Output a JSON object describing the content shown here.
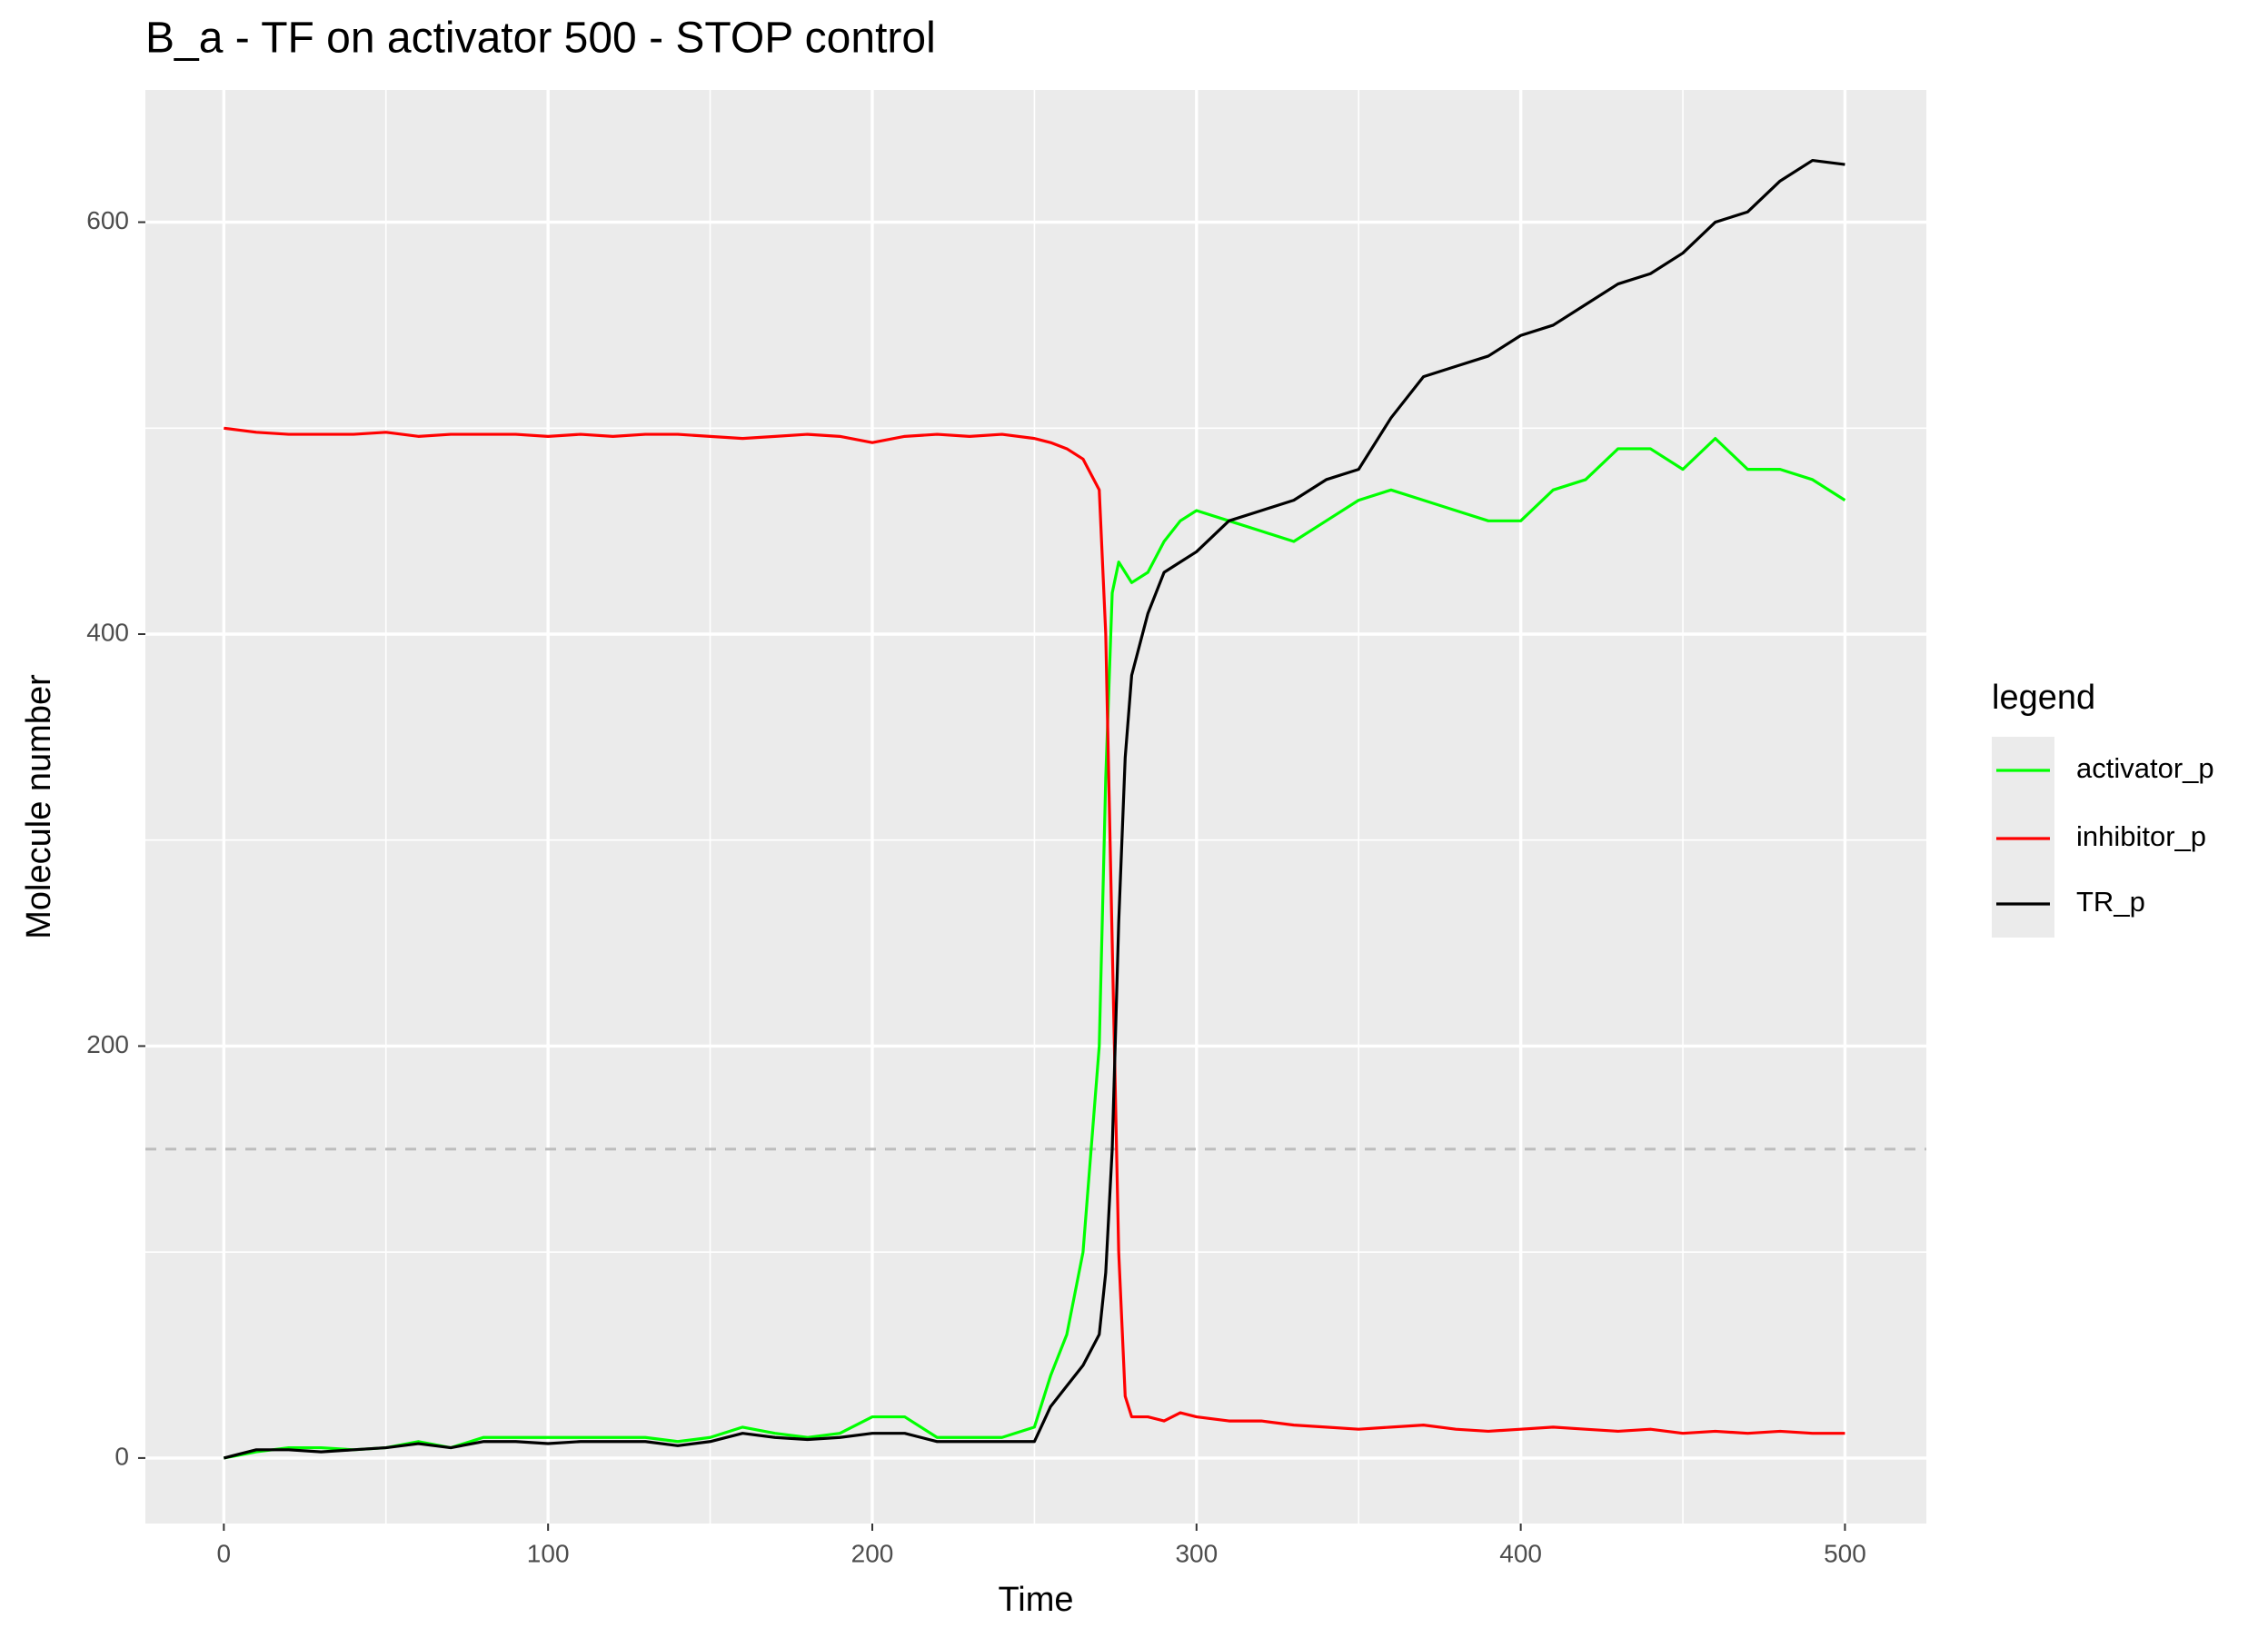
{
  "chart_data": {
    "type": "line",
    "title": "B_a - TF on activator 500 - STOP control",
    "x_label": "Time",
    "y_label": "Molecule number",
    "x": [
      0,
      10,
      20,
      30,
      40,
      50,
      60,
      70,
      80,
      90,
      100,
      110,
      120,
      130,
      140,
      150,
      160,
      170,
      180,
      190,
      200,
      210,
      220,
      230,
      240,
      250,
      255,
      260,
      265,
      270,
      272,
      274,
      276,
      278,
      280,
      285,
      290,
      295,
      300,
      310,
      320,
      330,
      340,
      350,
      360,
      370,
      380,
      390,
      400,
      410,
      420,
      430,
      440,
      450,
      460,
      470,
      480,
      490,
      500
    ],
    "series": [
      {
        "name": "activator_p",
        "color": "#00ff00",
        "values": [
          0,
          3,
          5,
          5,
          4,
          5,
          8,
          5,
          10,
          10,
          10,
          10,
          10,
          10,
          8,
          10,
          15,
          12,
          10,
          12,
          20,
          20,
          10,
          10,
          10,
          15,
          40,
          60,
          100,
          200,
          330,
          420,
          435,
          430,
          425,
          430,
          445,
          455,
          460,
          455,
          450,
          445,
          455,
          465,
          470,
          465,
          460,
          455,
          455,
          470,
          475,
          490,
          490,
          480,
          495,
          480,
          480,
          475,
          465
        ]
      },
      {
        "name": "inhibitor_p",
        "color": "#ff0000",
        "values": [
          500,
          498,
          497,
          497,
          497,
          498,
          496,
          497,
          497,
          497,
          496,
          497,
          496,
          497,
          497,
          496,
          495,
          496,
          497,
          496,
          493,
          496,
          497,
          496,
          497,
          495,
          493,
          490,
          485,
          470,
          400,
          250,
          100,
          30,
          20,
          20,
          18,
          22,
          20,
          18,
          18,
          16,
          15,
          14,
          15,
          16,
          14,
          13,
          14,
          15,
          14,
          13,
          14,
          12,
          13,
          12,
          13,
          12,
          12
        ]
      },
      {
        "name": "TR_p",
        "color": "#000000",
        "values": [
          0,
          4,
          4,
          3,
          4,
          5,
          7,
          5,
          8,
          8,
          7,
          8,
          8,
          8,
          6,
          8,
          12,
          10,
          9,
          10,
          12,
          12,
          8,
          8,
          8,
          8,
          25,
          35,
          45,
          60,
          90,
          150,
          260,
          340,
          380,
          410,
          430,
          435,
          440,
          455,
          460,
          465,
          475,
          480,
          505,
          525,
          530,
          535,
          545,
          550,
          560,
          570,
          575,
          585,
          600,
          605,
          620,
          630,
          628
        ]
      }
    ],
    "hline": 150,
    "legend_title": "legend",
    "xlim": [
      -24.2,
      525.1
    ],
    "ylim": [
      -31.8,
      664.2
    ],
    "xticks": [
      0,
      100,
      200,
      300,
      400,
      500
    ],
    "yticks": [
      0,
      200,
      400,
      600
    ],
    "grid": true,
    "legend": "right"
  }
}
